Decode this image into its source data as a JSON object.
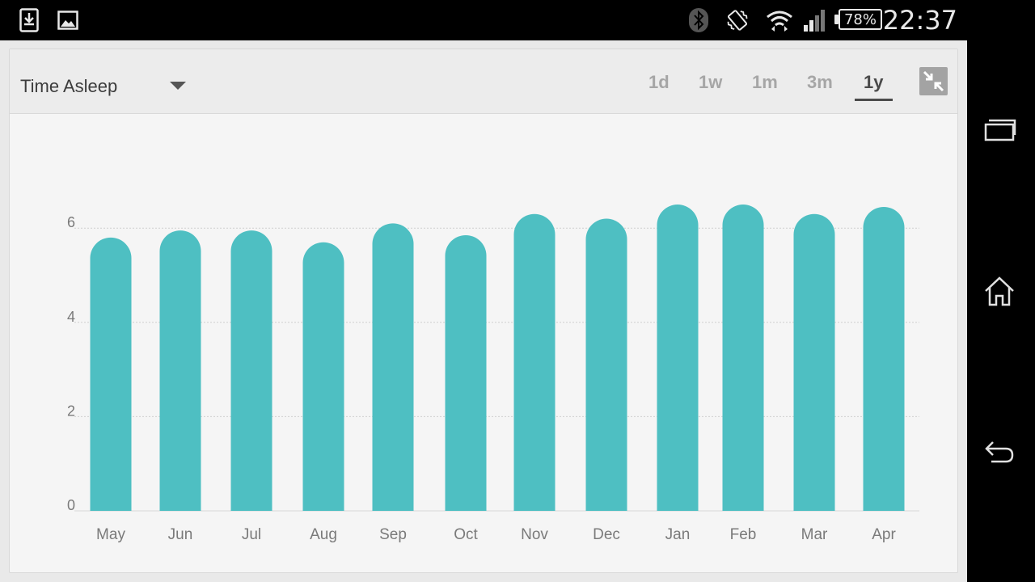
{
  "status_bar": {
    "notifications": [
      "download-icon",
      "image-icon"
    ],
    "system_icons": [
      "bluetooth-icon",
      "vibrate-icon",
      "wifi-icon",
      "signal-icon"
    ],
    "battery": "78%",
    "clock": "22:37"
  },
  "header": {
    "metric": "Time Asleep",
    "tabs": [
      {
        "label": "1d",
        "active": false
      },
      {
        "label": "1w",
        "active": false
      },
      {
        "label": "1m",
        "active": false
      },
      {
        "label": "3m",
        "active": false
      },
      {
        "label": "1y",
        "active": true
      }
    ]
  },
  "colors": {
    "bar": "#4ebfc2",
    "active_tab": "#4a4a4a",
    "inactive_tab": "#a6a6a6"
  },
  "chart_data": {
    "type": "bar",
    "categories": [
      "May",
      "Jun",
      "Jul",
      "Aug",
      "Sep",
      "Oct",
      "Nov",
      "Dec",
      "Jan",
      "Feb",
      "Mar",
      "Apr"
    ],
    "values": [
      5.8,
      5.95,
      5.95,
      5.7,
      6.1,
      5.85,
      6.3,
      6.2,
      6.5,
      6.5,
      6.3,
      6.45
    ],
    "yticks": [
      "0",
      "2",
      "4",
      "6"
    ],
    "ylim": [
      0,
      8.3
    ],
    "grid": true,
    "xlabel": "",
    "ylabel": ""
  }
}
